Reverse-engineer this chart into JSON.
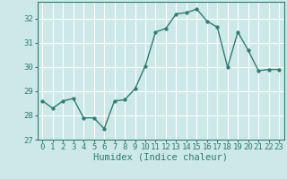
{
  "x": [
    0,
    1,
    2,
    3,
    4,
    5,
    6,
    7,
    8,
    9,
    10,
    11,
    12,
    13,
    14,
    15,
    16,
    17,
    18,
    19,
    20,
    21,
    22,
    23
  ],
  "y": [
    28.6,
    28.3,
    28.6,
    28.7,
    27.9,
    27.9,
    27.45,
    28.6,
    28.65,
    29.1,
    30.05,
    31.45,
    31.6,
    32.2,
    32.25,
    32.4,
    31.9,
    31.65,
    30.0,
    31.45,
    30.7,
    29.85,
    29.9,
    29.9
  ],
  "line_color": "#2e7d6e",
  "marker": "o",
  "markersize": 2.5,
  "linewidth": 1.0,
  "bg_color": "#cde8e8",
  "grid_color": "#ffffff",
  "xlabel": "Humidex (Indice chaleur)",
  "xlim": [
    -0.5,
    23.5
  ],
  "ylim": [
    27,
    32.7
  ],
  "yticks": [
    27,
    28,
    29,
    30,
    31,
    32
  ],
  "xticks": [
    0,
    1,
    2,
    3,
    4,
    5,
    6,
    7,
    8,
    9,
    10,
    11,
    12,
    13,
    14,
    15,
    16,
    17,
    18,
    19,
    20,
    21,
    22,
    23
  ],
  "tick_label_fontsize": 6.5,
  "xlabel_fontsize": 7.5,
  "tick_color": "#2e7d6e",
  "spine_color": "#2e7d6e"
}
